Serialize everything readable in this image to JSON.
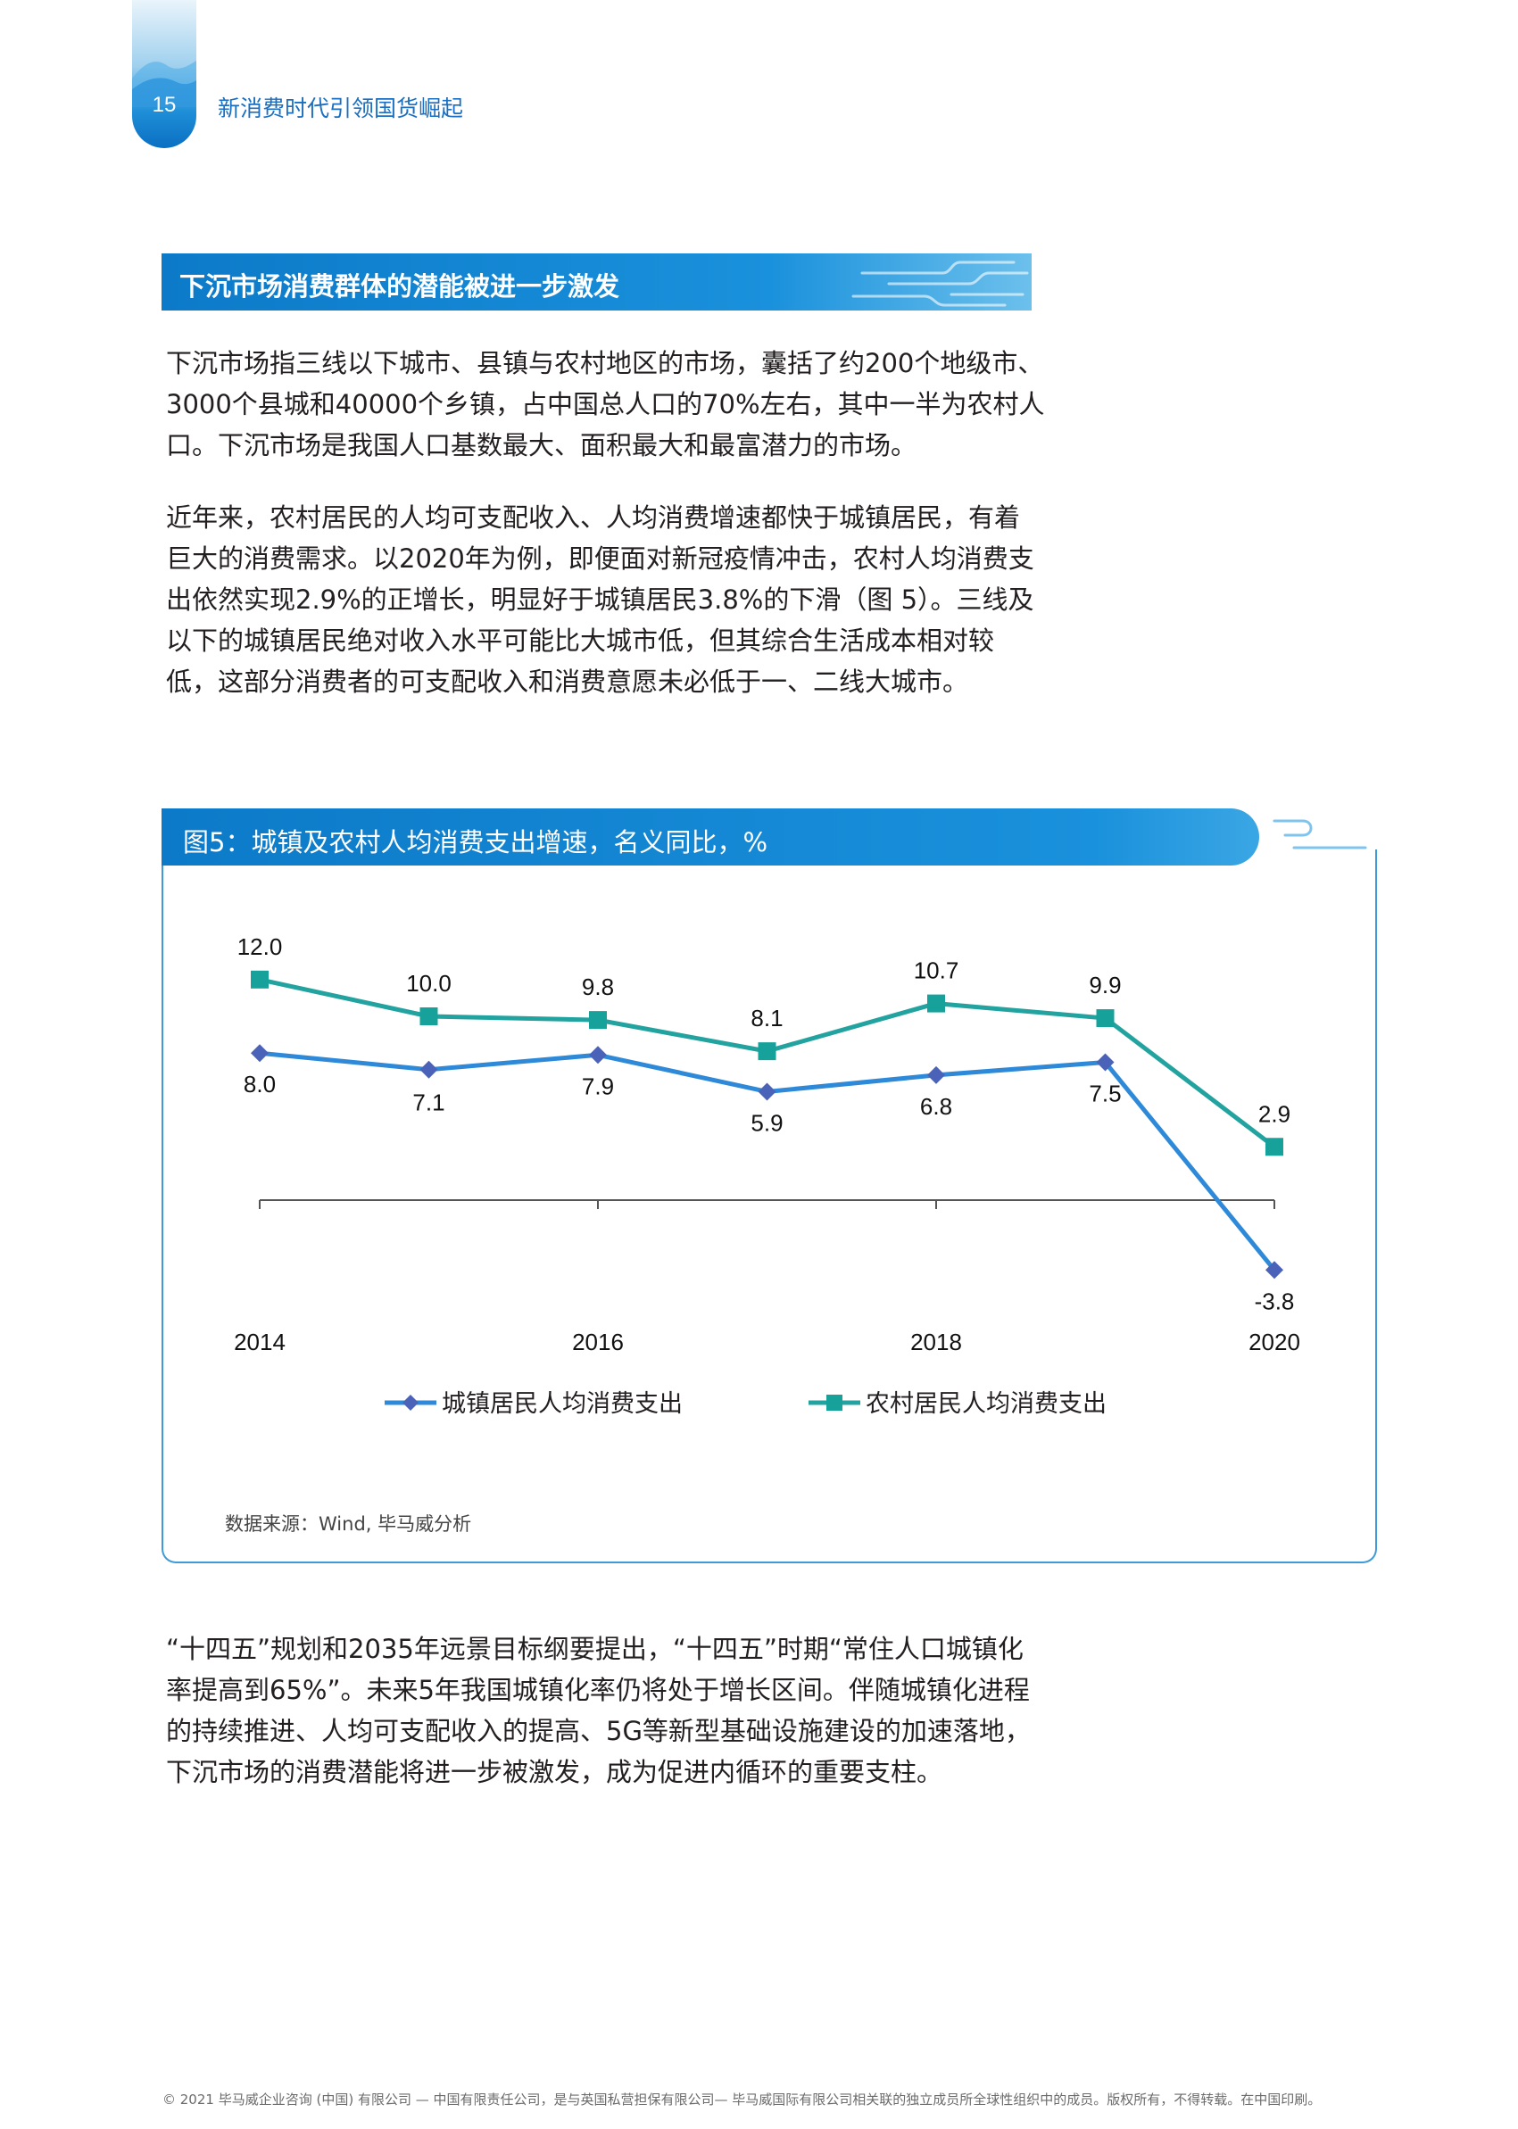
{
  "header": {
    "page_number": "15",
    "running_title": "新消费时代引领国货崛起"
  },
  "section": {
    "title": "下沉市场消费群体的潜能被进一步激发"
  },
  "paragraphs": {
    "p1": "下沉市场指三线以下城市、县镇与农村地区的市场，囊括了约200个地级市、3000个县城和40000个乡镇，占中国总人口的70%左右，其中一半为农村人口。下沉市场是我国人口基数最大、面积最大和最富潜力的市场。",
    "p2": "近年来，农村居民的人均可支配收入、人均消费增速都快于城镇居民，有着巨大的消费需求。以2020年为例，即便面对新冠疫情冲击，农村人均消费支出依然实现2.9%的正增长，明显好于城镇居民3.8%的下滑（图 5）。三线及以下的城镇居民绝对收入水平可能比大城市低，但其综合生活成本相对较低，这部分消费者的可支配收入和消费意愿未必低于一、二线大城市。",
    "p3": "“十四五”规划和2035年远景目标纲要提出，“十四五”时期“常住人口城镇化率提高到65%”。未来5年我国城镇化率仍将处于增长区间。伴随城镇化进程的持续推进、人均可支配收入的提高、5G等新型基础设施建设的加速落地，下沉市场的消费潜能将进一步被激发，成为促进内循环的重要支柱。"
  },
  "figure": {
    "title": "图5：城镇及农村人均消费支出增速，名义同比，%",
    "source": "数据来源：Wind, 毕马威分析"
  },
  "chart_data": {
    "type": "line",
    "title": "图5：城镇及农村人均消费支出增速，名义同比，%",
    "x": [
      2014,
      2015,
      2016,
      2017,
      2018,
      2019,
      2020
    ],
    "tick_labels": [
      "2014",
      "2016",
      "2018",
      "2020"
    ],
    "series": [
      {
        "name": "城镇居民人均消费支出",
        "values": [
          8.0,
          7.1,
          7.9,
          5.9,
          6.8,
          7.5,
          -3.8
        ],
        "labels": [
          "8.0",
          "7.1",
          "7.9",
          "5.9",
          "6.8",
          "7.5",
          "-3.8"
        ],
        "color": "#2e8ad8",
        "marker": "diamond",
        "marker_color": "#4a62b8"
      },
      {
        "name": "农村居民人均消费支出",
        "values": [
          12.0,
          10.0,
          9.8,
          8.1,
          10.7,
          9.9,
          2.9
        ],
        "labels": [
          "12.0",
          "10.0",
          "9.8",
          "8.1",
          "10.7",
          "9.9",
          "2.9"
        ],
        "color": "#23a3a0",
        "marker": "square",
        "marker_color": "#16a29b"
      }
    ],
    "ylim": [
      -5,
      13
    ],
    "grid": false,
    "legend_position": "bottom"
  },
  "colors": {
    "accent": "#1a91dc",
    "accent_dark": "#0c7ac8",
    "body_text": "#231f20"
  },
  "footer": {
    "text": "© 2021 毕马威企业咨询 (中国) 有限公司 — 中国有限责任公司，是与英国私营担保有限公司— 毕马威国际有限公司相关联的独立成员所全球性组织中的成员。版权所有，不得转载。在中国印刷。"
  }
}
